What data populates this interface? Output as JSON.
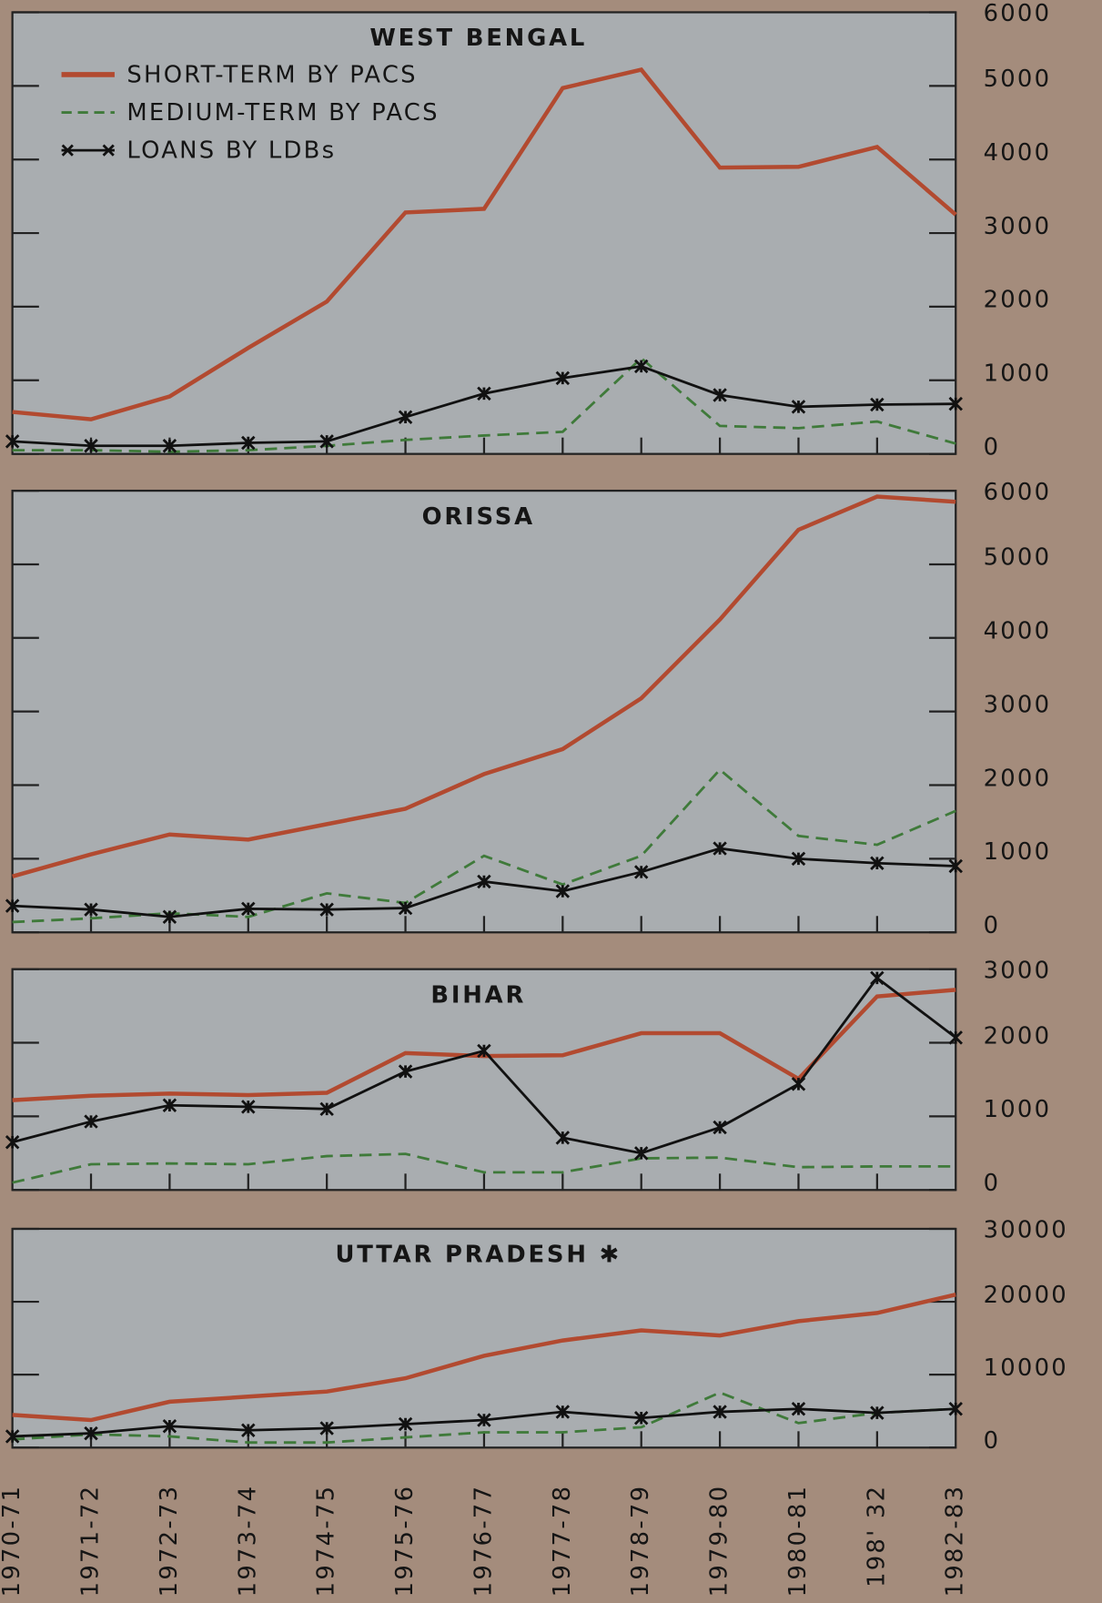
{
  "chart_data": [
    {
      "type": "line",
      "title": "WEST BENGAL",
      "legend": "upper left",
      "ylim": [
        0,
        6000
      ],
      "yticks": [
        0,
        1000,
        2000,
        3000,
        4000,
        5000,
        6000
      ],
      "series": [
        {
          "name": "SHORT-TERM BY PACS",
          "color": "#b24a30",
          "linestyle": "solid",
          "values": [
            570,
            470,
            780,
            1440,
            2070,
            3280,
            3330,
            4970,
            5220,
            3890,
            3900,
            4170,
            3250
          ]
        },
        {
          "name": "MEDIUM-TERM BY PACS",
          "color": "#3f7a3a",
          "linestyle": "dashed",
          "values": [
            50,
            50,
            30,
            50,
            110,
            190,
            250,
            300,
            1300,
            380,
            350,
            440,
            140
          ]
        },
        {
          "name": "LOANS BY LDBs",
          "color": "#111111",
          "linestyle": "solid",
          "marker": "x",
          "values": [
            170,
            110,
            110,
            150,
            170,
            500,
            820,
            1030,
            1190,
            800,
            640,
            670,
            680
          ]
        }
      ]
    },
    {
      "type": "line",
      "title": "ORISSA",
      "ylim": [
        0,
        6000
      ],
      "yticks": [
        0,
        1000,
        2000,
        3000,
        4000,
        5000,
        6000
      ],
      "series": [
        {
          "color": "#b24a30",
          "linestyle": "solid",
          "values": [
            760,
            1060,
            1330,
            1260,
            1470,
            1680,
            2150,
            2490,
            3180,
            4250,
            5470,
            5920,
            5850
          ]
        },
        {
          "color": "#3f7a3a",
          "linestyle": "dashed",
          "values": [
            140,
            190,
            260,
            210,
            530,
            400,
            1040,
            650,
            1040,
            2210,
            1310,
            1190,
            1650
          ]
        },
        {
          "color": "#111111",
          "linestyle": "solid",
          "marker": "x",
          "values": [
            360,
            310,
            210,
            320,
            310,
            330,
            690,
            560,
            820,
            1140,
            1000,
            940,
            900
          ]
        }
      ]
    },
    {
      "type": "line",
      "title": "BIHAR",
      "ylim": [
        0,
        3000
      ],
      "yticks": [
        0,
        1000,
        2000,
        3000
      ],
      "series": [
        {
          "color": "#b24a30",
          "linestyle": "solid",
          "values": [
            1220,
            1280,
            1310,
            1290,
            1320,
            1860,
            1820,
            1830,
            2130,
            2130,
            1510,
            2630,
            2720
          ]
        },
        {
          "color": "#3f7a3a",
          "linestyle": "dashed",
          "values": [
            100,
            350,
            360,
            350,
            460,
            490,
            240,
            240,
            430,
            440,
            310,
            320,
            320
          ]
        },
        {
          "color": "#111111",
          "linestyle": "solid",
          "marker": "x",
          "values": [
            650,
            930,
            1150,
            1130,
            1100,
            1610,
            1890,
            710,
            500,
            850,
            1440,
            2880,
            2070
          ]
        }
      ]
    },
    {
      "type": "line",
      "title": "UTTAR PRADESH ✱",
      "categories": [
        "1970-71",
        "1971-72",
        "1972-73",
        "1973-74",
        "1974-75",
        "1975-76",
        "1976-77",
        "1977-78",
        "1978-79",
        "1979-80",
        "1980-81",
        "198' 32",
        "1982-83"
      ],
      "ylim": [
        0,
        30000
      ],
      "yticks": [
        0,
        10000,
        20000,
        30000
      ],
      "series": [
        {
          "color": "#b24a30",
          "linestyle": "solid",
          "values": [
            4480,
            3780,
            6290,
            6990,
            7690,
            9510,
            12590,
            14690,
            16080,
            15380,
            17340,
            18460,
            20980
          ]
        },
        {
          "color": "#3f7a3a",
          "linestyle": "dashed",
          "values": [
            1120,
            1820,
            1540,
            700,
            700,
            1400,
            2100,
            2100,
            2800,
            7550,
            3360,
            4760,
            5310
          ]
        },
        {
          "color": "#111111",
          "linestyle": "solid",
          "marker": "x",
          "values": [
            1540,
            1960,
            2940,
            2380,
            2660,
            3220,
            3780,
            4900,
            4060,
            4900,
            5310,
            4760,
            5310
          ]
        }
      ]
    }
  ]
}
